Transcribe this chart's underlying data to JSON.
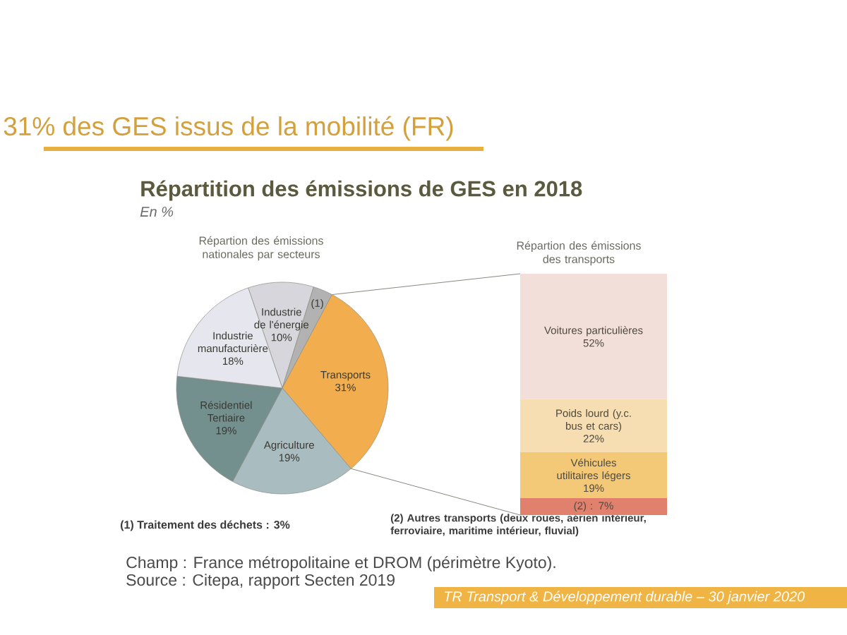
{
  "chart_data": [
    {
      "type": "pie",
      "title": "Répartion des émissions nationales par secteurs",
      "categories": [
        "Industrie de l'énergie",
        "(1)",
        "Transports",
        "Agriculture",
        "Résidentiel Tertiaire",
        "Industrie manufacturière"
      ],
      "values": [
        10,
        3,
        31,
        19,
        19,
        18
      ],
      "value_labels": [
        "10%",
        null,
        "31%",
        "19%",
        "19%",
        "18%"
      ],
      "colors": [
        "#d6d6dc",
        "#b2b2b2",
        "#f2ae4e",
        "#a9bcc0",
        "#74908e",
        "#e6e6ee"
      ],
      "annotations": [
        "31% des GES issus de la mobilité (FR)",
        "Répartition des émissions de GES en 2018",
        "En %",
        "(1) Traitement des déchets : 3%",
        "Champ : France métropolitaine et DROM (périmètre Kyoto).",
        "Source : Citepa, rapport Secten 2019",
        "TR Transport & Développement durable – 30 janvier 2020"
      ]
    },
    {
      "type": "bar",
      "stacked": true,
      "title": "Répartion des émissions des transports",
      "categories": [
        null
      ],
      "series": [
        {
          "color": "#e2806e",
          "values": [
            7
          ],
          "value_labels": [
            "(2) : 7%"
          ]
        },
        {
          "name": "Véhicules utilitaires légers",
          "color": "#f3c877",
          "values": [
            19
          ],
          "value_labels": [
            "19%"
          ]
        },
        {
          "name": "Poids lourd (y.c. bus et cars)",
          "color": "#f6ddb2",
          "values": [
            22
          ],
          "value_labels": [
            "22%"
          ]
        },
        {
          "name": "Voitures particulières",
          "color": "#f2dfda",
          "values": [
            52
          ],
          "value_labels": [
            "52%"
          ]
        }
      ],
      "annotations": [
        "(2) Autres transports (deux roues, aérien intérieur, ferroviaire, maritime intérieur, fluvial)"
      ]
    }
  ]
}
